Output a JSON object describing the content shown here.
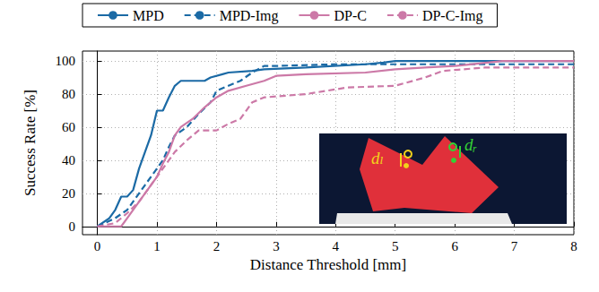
{
  "chart_data": {
    "type": "line",
    "x_label": "Distance Threshold [mm]",
    "y_label": "Success Rate [%]",
    "xlim": [
      -0.25,
      8
    ],
    "xticks": [
      0,
      1,
      2,
      3,
      4,
      5,
      6,
      7,
      8
    ],
    "ylim": [
      -5,
      106
    ],
    "yticks": [
      0,
      20,
      40,
      60,
      80,
      100
    ],
    "grid": true,
    "legend": "top",
    "annotations": [
      "dₗ",
      "dᵣ"
    ],
    "series": [
      {
        "name": "MPD",
        "color": "#1b6aa5",
        "line_style": "solid",
        "x": [
          0,
          0.2,
          0.3,
          0.4,
          0.5,
          0.6,
          0.7,
          0.8,
          0.9,
          1.0,
          1.1,
          1.2,
          1.3,
          1.4,
          1.8,
          1.9,
          2.1,
          2.2,
          2.6,
          2.8,
          3.5,
          4.5,
          4.8,
          5.0,
          8
        ],
        "values": [
          0,
          5,
          10,
          18,
          18,
          22,
          35,
          45,
          55,
          70,
          70,
          78,
          85,
          88,
          88,
          90,
          92,
          93,
          94,
          95,
          96,
          98,
          99,
          100,
          100
        ]
      },
      {
        "name": "MPD-Img",
        "color": "#1b6aa5",
        "line_style": "dashed",
        "x": [
          0,
          0.3,
          0.5,
          0.6,
          0.7,
          0.8,
          0.9,
          1.0,
          1.1,
          1.2,
          1.3,
          1.5,
          1.7,
          1.9,
          2.0,
          2.2,
          2.4,
          2.6,
          2.8,
          3.0,
          4.0,
          8
        ],
        "values": [
          0,
          5,
          10,
          15,
          20,
          25,
          30,
          35,
          40,
          48,
          55,
          60,
          68,
          75,
          82,
          85,
          88,
          93,
          97,
          97,
          98,
          98
        ]
      },
      {
        "name": "DP-C",
        "color": "#cc79a7",
        "line_style": "solid",
        "x": [
          0,
          0.4,
          0.5,
          0.6,
          0.7,
          0.8,
          1.0,
          1.1,
          1.2,
          1.3,
          1.4,
          1.6,
          1.8,
          2.0,
          2.2,
          2.5,
          2.8,
          3.0,
          3.5,
          4.5,
          5.0,
          5.5,
          6.0,
          6.8,
          8
        ],
        "values": [
          0,
          0,
          5,
          10,
          15,
          20,
          30,
          38,
          45,
          55,
          60,
          65,
          72,
          78,
          82,
          85,
          88,
          91,
          92,
          93,
          95,
          96,
          97,
          100,
          100
        ]
      },
      {
        "name": "DP-C-Img",
        "color": "#cc79a7",
        "line_style": "dashed",
        "x": [
          0,
          0.3,
          0.5,
          0.7,
          0.8,
          1.0,
          1.1,
          1.3,
          1.5,
          1.7,
          2.0,
          2.2,
          2.4,
          2.6,
          2.8,
          3.5,
          4.2,
          5.0,
          5.5,
          5.8,
          6.5,
          8
        ],
        "values": [
          0,
          2,
          8,
          15,
          20,
          30,
          35,
          45,
          52,
          58,
          58,
          62,
          65,
          75,
          78,
          80,
          84,
          85,
          90,
          94,
          96,
          96
        ]
      }
    ]
  }
}
